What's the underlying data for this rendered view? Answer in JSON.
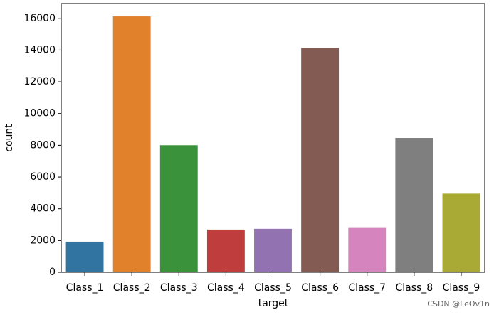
{
  "chart_data": {
    "type": "bar",
    "xlabel": "target",
    "ylabel": "count",
    "categories": [
      "Class_1",
      "Class_2",
      "Class_3",
      "Class_4",
      "Class_5",
      "Class_6",
      "Class_7",
      "Class_8",
      "Class_9"
    ],
    "values": [
      1929,
      16122,
      8004,
      2691,
      2739,
      14135,
      2839,
      8464,
      4955
    ],
    "colors": [
      "#3274a1",
      "#e1812c",
      "#3a923a",
      "#c03d3e",
      "#9372b2",
      "#845b53",
      "#d684bd",
      "#7f7f7f",
      "#a9aa35"
    ],
    "ylim": [
      0,
      16930
    ],
    "yticks": [
      0,
      2000,
      4000,
      6000,
      8000,
      10000,
      12000,
      14000,
      16000
    ],
    "watermark": "CSDN @LeOv1n"
  }
}
